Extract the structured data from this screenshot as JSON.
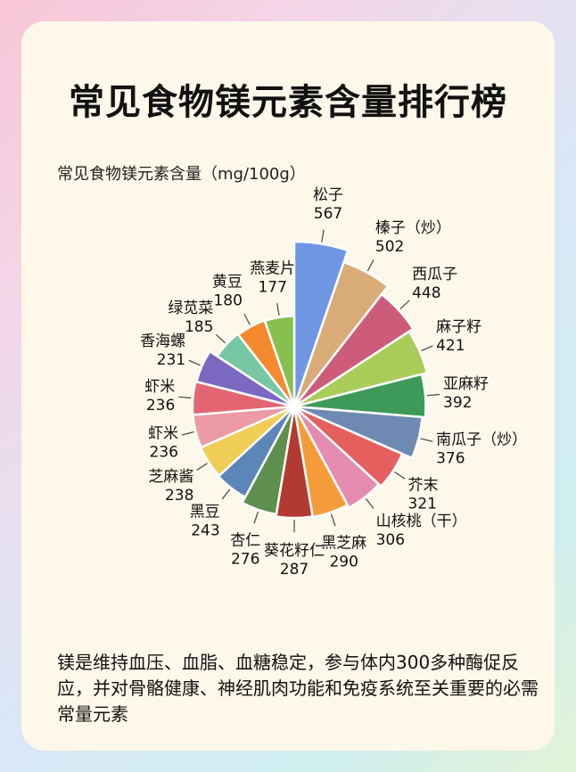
{
  "title": "常见食物镁元素含量排行榜",
  "description": "镁是维持血压、血脂、血糖稳定，参与体内300多种酶促反应，并对骨骼健康、神经肌肉功能和免疫系统至关重要的必需常量元素",
  "chart_data": {
    "type": "pie",
    "title": "常见食物镁元素含量（mg/100g）",
    "legend": "none",
    "slices": [
      {
        "label": "松子",
        "value": 567,
        "color": "#6f97e4"
      },
      {
        "label": "榛子（炒）",
        "value": 502,
        "color": "#d8ab77"
      },
      {
        "label": "西瓜子",
        "value": 448,
        "color": "#cd5c7b"
      },
      {
        "label": "麻子籽",
        "value": 421,
        "color": "#a9cd58"
      },
      {
        "label": "亚麻籽",
        "value": 392,
        "color": "#3d9a58"
      },
      {
        "label": "南瓜子（炒）",
        "value": 376,
        "color": "#6f8ab2"
      },
      {
        "label": "芥末",
        "value": 321,
        "color": "#e55f5f"
      },
      {
        "label": "山核桃（干）",
        "value": 306,
        "color": "#e58bb0"
      },
      {
        "label": "黑芝麻",
        "value": 290,
        "color": "#f59c3a"
      },
      {
        "label": "葵花籽仁",
        "value": 287,
        "color": "#b33a33"
      },
      {
        "label": "杏仁",
        "value": 276,
        "color": "#5e8f4f"
      },
      {
        "label": "黑豆",
        "value": 243,
        "color": "#5d86b8"
      },
      {
        "label": "芝麻酱",
        "value": 238,
        "color": "#f0cd55"
      },
      {
        "label": "虾米",
        "value": 236,
        "color": "#ec9aa5"
      },
      {
        "label": "虾米",
        "value": 236,
        "color": "#e46572"
      },
      {
        "label": "香海螺",
        "value": 231,
        "color": "#7b68c0"
      },
      {
        "label": "绿苋菜",
        "value": 185,
        "color": "#79c6a4"
      },
      {
        "label": "黄豆",
        "value": 180,
        "color": "#f4892f"
      },
      {
        "label": "燕麦片",
        "value": 177,
        "color": "#88c04f"
      }
    ]
  }
}
